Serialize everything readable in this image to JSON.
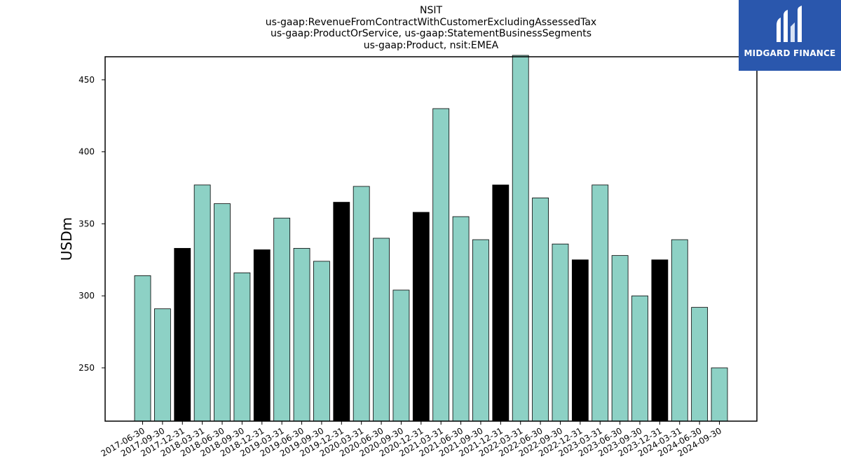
{
  "chart_data": {
    "type": "bar",
    "title_lines": [
      "NSIT",
      "us-gaap:RevenueFromContractWithCustomerExcludingAssessedTax",
      "us-gaap:ProductOrService, us-gaap:StatementBusinessSegments",
      "us-gaap:Product, nsit:EMEA"
    ],
    "ylabel": "USDm",
    "xlabel": "",
    "ylim": [
      213,
      466
    ],
    "yticks": [
      250,
      300,
      350,
      400,
      450
    ],
    "categories": [
      "2017-06-30",
      "2017-09-30",
      "2017-12-31",
      "2018-03-31",
      "2018-06-30",
      "2018-09-30",
      "2018-12-31",
      "2019-03-31",
      "2019-06-30",
      "2019-09-30",
      "2019-12-31",
      "2020-03-31",
      "2020-06-30",
      "2020-09-30",
      "2020-12-31",
      "2021-03-31",
      "2021-06-30",
      "2021-09-30",
      "2021-12-31",
      "2022-03-31",
      "2022-06-30",
      "2022-09-30",
      "2022-12-31",
      "2023-03-31",
      "2023-06-30",
      "2023-09-30",
      "2023-12-31",
      "2024-03-31",
      "2024-06-30",
      "2024-09-30"
    ],
    "values": [
      314,
      291,
      333,
      377,
      364,
      316,
      332,
      354,
      333,
      324,
      365,
      376,
      340,
      304,
      358,
      430,
      355,
      339,
      377,
      467,
      368,
      336,
      325,
      377,
      328,
      300,
      325,
      339,
      292,
      250
    ],
    "year_end_color": "#000000",
    "default_color": "#8dd1c5",
    "year_end_categories": [
      "2017-12-31",
      "2018-12-31",
      "2019-12-31",
      "2020-12-31",
      "2021-12-31",
      "2022-12-31",
      "2023-12-31"
    ],
    "grid": false
  },
  "logo": {
    "text": "MIDGARD FINANCE",
    "color": "#2a57ad"
  }
}
